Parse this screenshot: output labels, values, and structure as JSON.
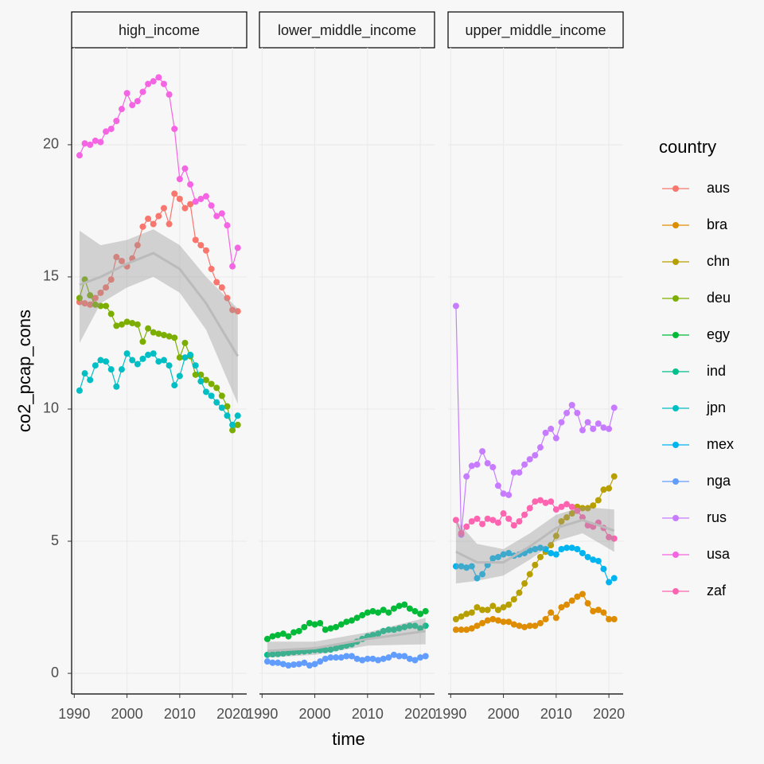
{
  "chart_data": {
    "type": "line",
    "xlabel": "time",
    "ylabel": "co2_pcap_cons",
    "legend_title": "country",
    "legend_position": "right",
    "grid": true,
    "xlim": [
      1989.5,
      2022.7
    ],
    "xticks": [
      1990,
      2000,
      2010,
      2020
    ],
    "ylim": [
      -0.78,
      23.67
    ],
    "yticks": [
      0,
      5,
      10,
      15,
      20
    ],
    "x": [
      1991,
      1992,
      1993,
      1994,
      1995,
      1996,
      1997,
      1998,
      1999,
      2000,
      2001,
      2002,
      2003,
      2004,
      2005,
      2006,
      2007,
      2008,
      2009,
      2010,
      2011,
      2012,
      2013,
      2014,
      2015,
      2016,
      2017,
      2018,
      2019,
      2020,
      2021
    ],
    "facets": [
      {
        "title": "high_income",
        "smooth": {
          "x": [
            1991,
            1995,
            2000,
            2005,
            2010,
            2015,
            2021
          ],
          "values": [
            14.7,
            15.0,
            15.5,
            15.9,
            15.3,
            14.0,
            12.0
          ],
          "lower": [
            12.5,
            14.0,
            14.6,
            15.0,
            14.4,
            13.0,
            10.2
          ],
          "upper": [
            16.75,
            16.2,
            16.4,
            16.8,
            16.2,
            15.0,
            13.8
          ]
        }
      },
      {
        "title": "lower_middle_income",
        "smooth": {
          "x": [
            1991,
            2000,
            2010,
            2021
          ],
          "values": [
            0.85,
            0.95,
            1.3,
            1.6
          ],
          "lower": [
            0.6,
            0.7,
            1.05,
            1.1
          ],
          "upper": [
            1.2,
            1.2,
            1.55,
            2.1
          ]
        }
      },
      {
        "title": "upper_middle_income",
        "smooth": {
          "x": [
            1991,
            1995,
            2000,
            2005,
            2010,
            2015,
            2021
          ],
          "values": [
            4.6,
            4.2,
            4.2,
            4.8,
            5.5,
            5.8,
            5.4
          ],
          "lower": [
            3.4,
            3.5,
            3.7,
            4.3,
            5.0,
            5.3,
            4.6
          ],
          "upper": [
            5.8,
            4.9,
            4.7,
            5.3,
            6.0,
            6.3,
            6.2
          ]
        }
      }
    ],
    "series": [
      {
        "name": "aus",
        "color": "#F8766D",
        "panel": 0,
        "values": [
          14.05,
          14.0,
          13.95,
          14.2,
          14.4,
          14.6,
          14.9,
          15.75,
          15.6,
          15.4,
          15.7,
          16.2,
          16.9,
          17.2,
          17.0,
          17.3,
          17.6,
          17.0,
          18.15,
          17.95,
          17.6,
          17.75,
          16.4,
          16.2,
          16.0,
          15.3,
          14.8,
          14.6,
          14.2,
          13.75,
          13.7
        ]
      },
      {
        "name": "bra",
        "color": "#DE8C00",
        "panel": 2,
        "values": [
          1.65,
          1.65,
          1.65,
          1.7,
          1.8,
          1.9,
          2.0,
          2.05,
          2.0,
          1.95,
          1.95,
          1.85,
          1.8,
          1.75,
          1.8,
          1.8,
          1.9,
          2.05,
          2.3,
          2.1,
          2.5,
          2.6,
          2.75,
          2.9,
          3.0,
          2.65,
          2.35,
          2.4,
          2.3,
          2.05,
          2.05
        ]
      },
      {
        "name": "chn",
        "color": "#B79F00",
        "panel": 2,
        "values": [
          2.05,
          2.15,
          2.25,
          2.3,
          2.5,
          2.4,
          2.4,
          2.55,
          2.4,
          2.5,
          2.6,
          2.8,
          3.05,
          3.4,
          3.75,
          4.1,
          4.4,
          4.6,
          4.85,
          5.2,
          5.75,
          5.9,
          6.05,
          6.3,
          6.25,
          6.25,
          6.35,
          6.55,
          6.95,
          7.0,
          7.45
        ]
      },
      {
        "name": "deu",
        "color": "#7CAE00",
        "panel": 0,
        "values": [
          14.2,
          14.9,
          14.3,
          13.95,
          13.9,
          13.9,
          13.6,
          13.15,
          13.2,
          13.3,
          13.25,
          13.2,
          12.55,
          13.05,
          12.9,
          12.85,
          12.8,
          12.75,
          12.7,
          11.95,
          12.5,
          12.0,
          11.3,
          11.3,
          11.1,
          10.95,
          10.8,
          10.5,
          10.1,
          9.2,
          9.4
        ]
      },
      {
        "name": "egy",
        "color": "#00BA38",
        "panel": 1,
        "values": [
          1.3,
          1.4,
          1.45,
          1.5,
          1.4,
          1.55,
          1.6,
          1.75,
          1.9,
          1.85,
          1.9,
          1.65,
          1.7,
          1.75,
          1.85,
          1.95,
          2.0,
          2.1,
          2.2,
          2.3,
          2.35,
          2.3,
          2.4,
          2.3,
          2.45,
          2.55,
          2.6,
          2.45,
          2.35,
          2.25,
          2.35
        ]
      },
      {
        "name": "ind",
        "color": "#00C08B",
        "panel": 1,
        "values": [
          0.7,
          0.72,
          0.73,
          0.75,
          0.78,
          0.8,
          0.82,
          0.83,
          0.85,
          0.88,
          0.88,
          0.88,
          0.9,
          0.95,
          1.0,
          1.05,
          1.1,
          1.2,
          1.3,
          1.4,
          1.45,
          1.5,
          1.6,
          1.65,
          1.65,
          1.7,
          1.75,
          1.8,
          1.8,
          1.7,
          1.8
        ]
      },
      {
        "name": "jpn",
        "color": "#00BFC4",
        "panel": 0,
        "values": [
          10.7,
          11.35,
          11.1,
          11.65,
          11.85,
          11.8,
          11.5,
          10.85,
          11.5,
          12.1,
          11.85,
          11.7,
          11.9,
          12.05,
          12.1,
          11.8,
          11.85,
          11.65,
          10.9,
          11.25,
          11.95,
          12.05,
          11.65,
          11.05,
          10.65,
          10.5,
          10.25,
          10.05,
          9.75,
          9.4,
          9.75
        ]
      },
      {
        "name": "mex",
        "color": "#00B4F0",
        "panel": 2,
        "values": [
          4.05,
          4.05,
          4.0,
          4.05,
          3.6,
          3.75,
          4.1,
          4.35,
          4.4,
          4.5,
          4.55,
          4.45,
          4.5,
          4.55,
          4.65,
          4.7,
          4.75,
          4.7,
          4.55,
          4.5,
          4.7,
          4.75,
          4.75,
          4.7,
          4.55,
          4.4,
          4.3,
          4.25,
          3.95,
          3.45,
          3.6
        ]
      },
      {
        "name": "nga",
        "color": "#619CFF",
        "panel": 1,
        "values": [
          0.45,
          0.4,
          0.4,
          0.35,
          0.3,
          0.33,
          0.35,
          0.4,
          0.3,
          0.35,
          0.45,
          0.55,
          0.6,
          0.6,
          0.6,
          0.65,
          0.65,
          0.55,
          0.5,
          0.55,
          0.55,
          0.5,
          0.55,
          0.6,
          0.7,
          0.65,
          0.65,
          0.55,
          0.5,
          0.6,
          0.65
        ]
      },
      {
        "name": "rus",
        "color": "#C77CFF",
        "panel": 2,
        "values": [
          13.9,
          5.25,
          7.45,
          7.85,
          7.9,
          8.4,
          7.95,
          7.8,
          7.1,
          6.8,
          6.75,
          7.6,
          7.6,
          7.9,
          8.1,
          8.25,
          8.55,
          9.1,
          9.25,
          8.9,
          9.5,
          9.85,
          10.15,
          9.85,
          9.2,
          9.5,
          9.25,
          9.45,
          9.3,
          9.25,
          10.05
        ]
      },
      {
        "name": "usa",
        "color": "#F564E3",
        "panel": 0,
        "values": [
          19.6,
          20.05,
          20.0,
          20.15,
          20.1,
          20.5,
          20.6,
          20.9,
          21.35,
          21.95,
          21.5,
          21.65,
          22.0,
          22.3,
          22.4,
          22.55,
          22.3,
          21.9,
          20.6,
          18.7,
          19.1,
          18.5,
          17.85,
          17.95,
          18.05,
          17.7,
          17.3,
          17.4,
          16.95,
          15.4,
          16.1
        ]
      },
      {
        "name": "zaf",
        "color": "#FF64B0",
        "panel": 2,
        "values": [
          5.8,
          5.3,
          5.55,
          5.75,
          5.85,
          5.65,
          5.85,
          5.8,
          5.7,
          6.05,
          5.85,
          5.6,
          5.75,
          6.0,
          6.25,
          6.5,
          6.55,
          6.45,
          6.5,
          6.2,
          6.3,
          6.4,
          6.3,
          6.15,
          5.9,
          5.6,
          5.55,
          5.7,
          5.5,
          5.15,
          5.1
        ]
      }
    ]
  }
}
